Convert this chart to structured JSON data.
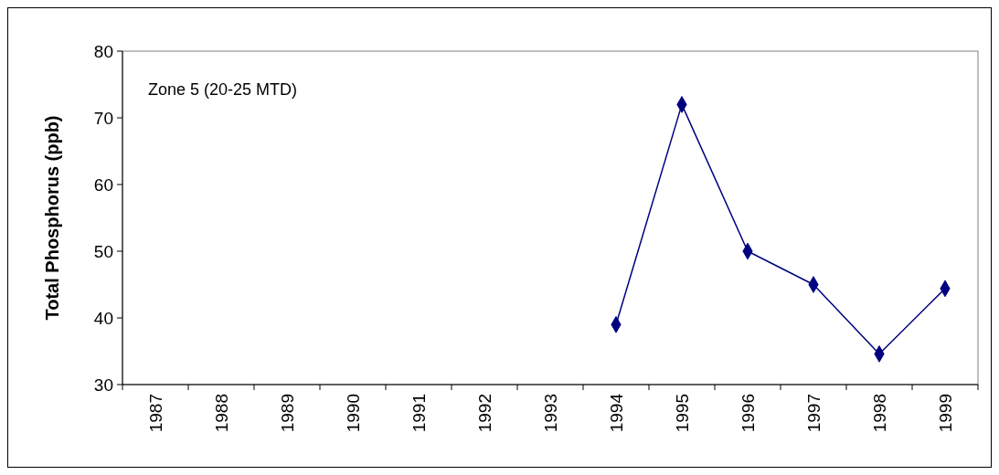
{
  "chart_data": {
    "type": "line",
    "ylabel": "Total Phosphorus (ppb)",
    "annotations": [
      "Zone 5 (20-25 MTD)"
    ],
    "categories": [
      "1987",
      "1988",
      "1989",
      "1990",
      "1991",
      "1992",
      "1993",
      "1994",
      "1995",
      "1996",
      "1997",
      "1998",
      "1999"
    ],
    "series": [
      {
        "color": "#000080",
        "values": [
          null,
          null,
          null,
          null,
          null,
          null,
          null,
          39.0,
          72.0,
          50.0,
          45.0,
          34.6,
          44.4
        ]
      }
    ],
    "ylim": [
      30,
      80
    ],
    "yticks": [
      30,
      40,
      50,
      60,
      70,
      80
    ],
    "marker": "diamond"
  }
}
